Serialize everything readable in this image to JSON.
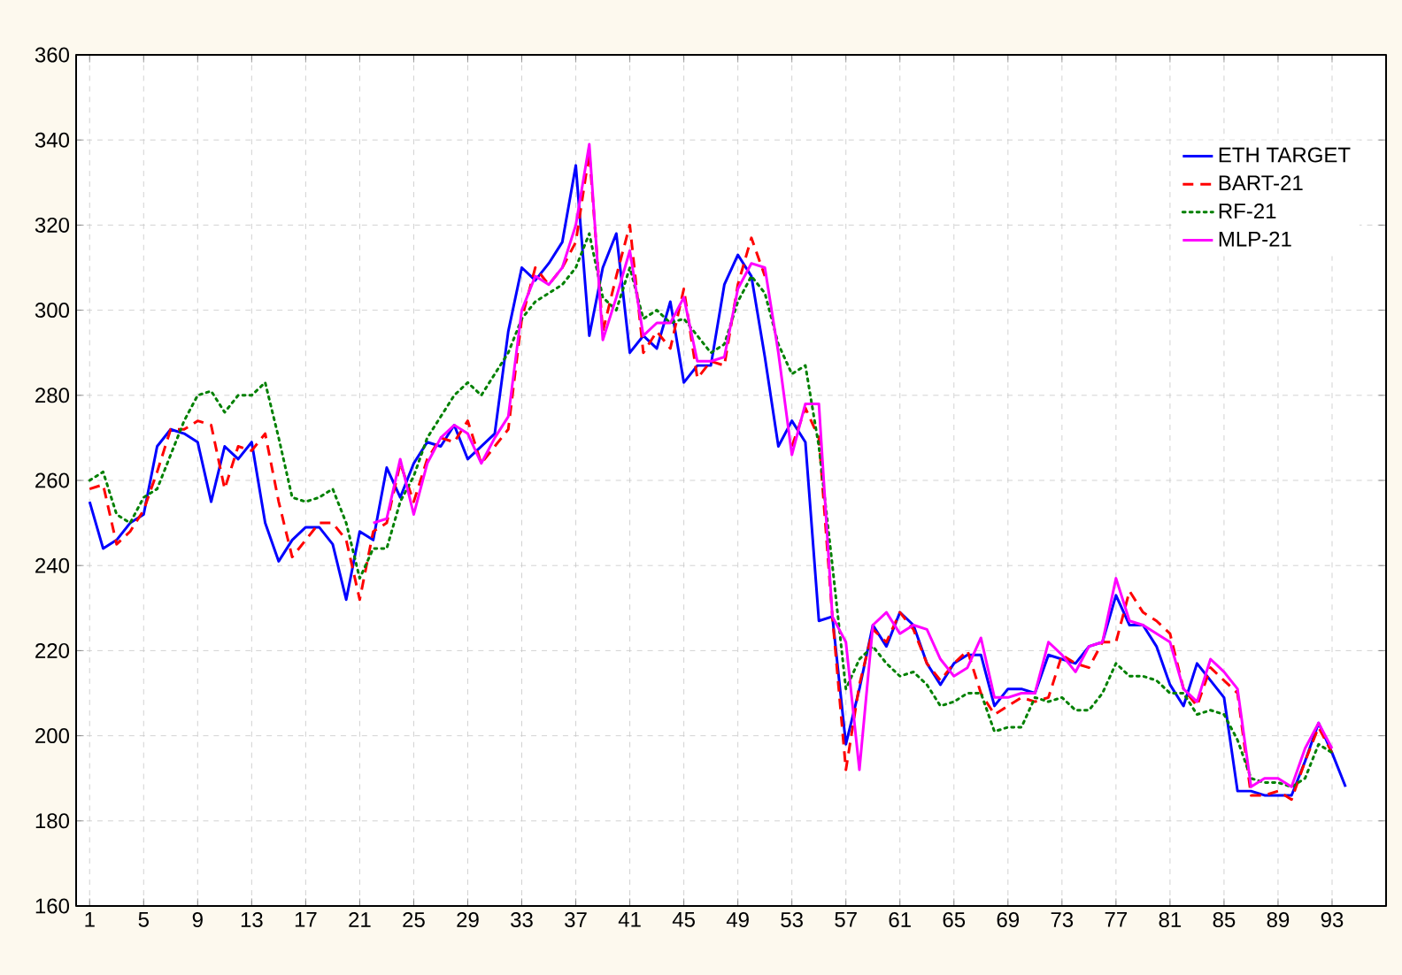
{
  "chart_data": {
    "type": "line",
    "x": [
      1,
      2,
      3,
      4,
      5,
      6,
      7,
      8,
      9,
      10,
      11,
      12,
      13,
      14,
      15,
      16,
      17,
      18,
      19,
      20,
      21,
      22,
      23,
      24,
      25,
      26,
      27,
      28,
      29,
      30,
      31,
      32,
      33,
      34,
      35,
      36,
      37,
      38,
      39,
      40,
      41,
      42,
      43,
      44,
      45,
      46,
      47,
      48,
      49,
      50,
      51,
      52,
      53,
      54,
      55,
      56,
      57,
      58,
      59,
      60,
      61,
      62,
      63,
      64,
      65,
      66,
      67,
      68,
      69,
      70,
      71,
      72,
      73,
      74,
      75,
      76,
      77,
      78,
      79,
      80,
      81,
      82,
      83,
      84,
      85,
      86,
      87,
      88,
      89,
      90,
      91,
      92,
      93,
      94
    ],
    "series": [
      {
        "name": "ETH TARGET",
        "color": "#0000ff",
        "line_style": "solid",
        "values": [
          255,
          244,
          246,
          250,
          252,
          268,
          272,
          271,
          269,
          255,
          268,
          265,
          269,
          250,
          241,
          246,
          249,
          249,
          245,
          232,
          248,
          246,
          263,
          256,
          264,
          269,
          268,
          273,
          265,
          268,
          271,
          295,
          310,
          307,
          311,
          316,
          334,
          294,
          310,
          318,
          290,
          294,
          291,
          302,
          283,
          287,
          287,
          306,
          313,
          308,
          289,
          268,
          274,
          269,
          227,
          228,
          198,
          211,
          226,
          221,
          229,
          226,
          217,
          212,
          217,
          219,
          219,
          207,
          211,
          211,
          210,
          219,
          218,
          217,
          221,
          222,
          233,
          226,
          226,
          221,
          212,
          207,
          217,
          213,
          209,
          187,
          187,
          186,
          186,
          186,
          194,
          203,
          196,
          188
        ]
      },
      {
        "name": "BART-21",
        "color": "#ff0000",
        "line_style": "dashed",
        "values": [
          258,
          259,
          245,
          248,
          253,
          262,
          272,
          272,
          274,
          273,
          258,
          268,
          267,
          271,
          255,
          242,
          246,
          250,
          250,
          246,
          232,
          248,
          250,
          264,
          255,
          265,
          270,
          269,
          274,
          264,
          268,
          272,
          298,
          310,
          306,
          310,
          316,
          337,
          295,
          308,
          320,
          290,
          295,
          291,
          305,
          284,
          288,
          287,
          306,
          317,
          308,
          null,
          268,
          277,
          270,
          228,
          192,
          212,
          225,
          222,
          229,
          225,
          217,
          213,
          217,
          220,
          210,
          205,
          207,
          209,
          208,
          209,
          219,
          217,
          216,
          222,
          222,
          234,
          229,
          227,
          224,
          211,
          207,
          216,
          213,
          210,
          186,
          186,
          187,
          185,
          194,
          202,
          196,
          null
        ]
      },
      {
        "name": "RF-21",
        "color": "#008000",
        "line_style": "dotted",
        "values": [
          260,
          262,
          252,
          250,
          256,
          258,
          266,
          274,
          280,
          281,
          276,
          280,
          280,
          283,
          270,
          256,
          255,
          256,
          258,
          250,
          237,
          244,
          244,
          255,
          261,
          270,
          275,
          280,
          283,
          280,
          285,
          290,
          298,
          302,
          304,
          306,
          310,
          318,
          303,
          300,
          310,
          298,
          300,
          297,
          298,
          294,
          290,
          292,
          302,
          308,
          304,
          292,
          285,
          287,
          268,
          240,
          211,
          218,
          221,
          217,
          214,
          215,
          212,
          207,
          208,
          210,
          210,
          201,
          202,
          202,
          209,
          208,
          209,
          206,
          206,
          210,
          217,
          214,
          214,
          213,
          210,
          210,
          205,
          206,
          205,
          199,
          190,
          189,
          189,
          188,
          190,
          198,
          196,
          null
        ]
      },
      {
        "name": "MLP-21",
        "color": "#ff00ff",
        "line_style": "solid",
        "values": [
          null,
          null,
          null,
          null,
          null,
          null,
          null,
          null,
          null,
          null,
          null,
          null,
          null,
          null,
          null,
          null,
          null,
          null,
          null,
          null,
          null,
          250,
          251,
          265,
          252,
          264,
          270,
          273,
          271,
          264,
          270,
          275,
          300,
          308,
          306,
          310,
          320,
          339,
          293,
          303,
          314,
          294,
          297,
          297,
          303,
          288,
          288,
          289,
          305,
          311,
          310,
          290,
          266,
          278,
          278,
          228,
          222,
          192,
          226,
          229,
          224,
          226,
          225,
          218,
          214,
          216,
          223,
          209,
          209,
          210,
          210,
          222,
          219,
          215,
          221,
          222,
          237,
          227,
          226,
          224,
          222,
          211,
          208,
          218,
          215,
          211,
          188,
          190,
          190,
          188,
          197,
          203,
          197,
          null
        ]
      }
    ],
    "xlim": [
      0,
      97
    ],
    "xticks": [
      1,
      5,
      9,
      13,
      17,
      21,
      25,
      29,
      33,
      37,
      41,
      45,
      49,
      53,
      57,
      61,
      65,
      69,
      73,
      77,
      81,
      85,
      89,
      93
    ],
    "ylim": [
      160,
      360
    ],
    "yticks": [
      160,
      180,
      200,
      220,
      240,
      260,
      280,
      300,
      320,
      340,
      360
    ],
    "grid": true,
    "legend": "top right",
    "marker": "none"
  }
}
